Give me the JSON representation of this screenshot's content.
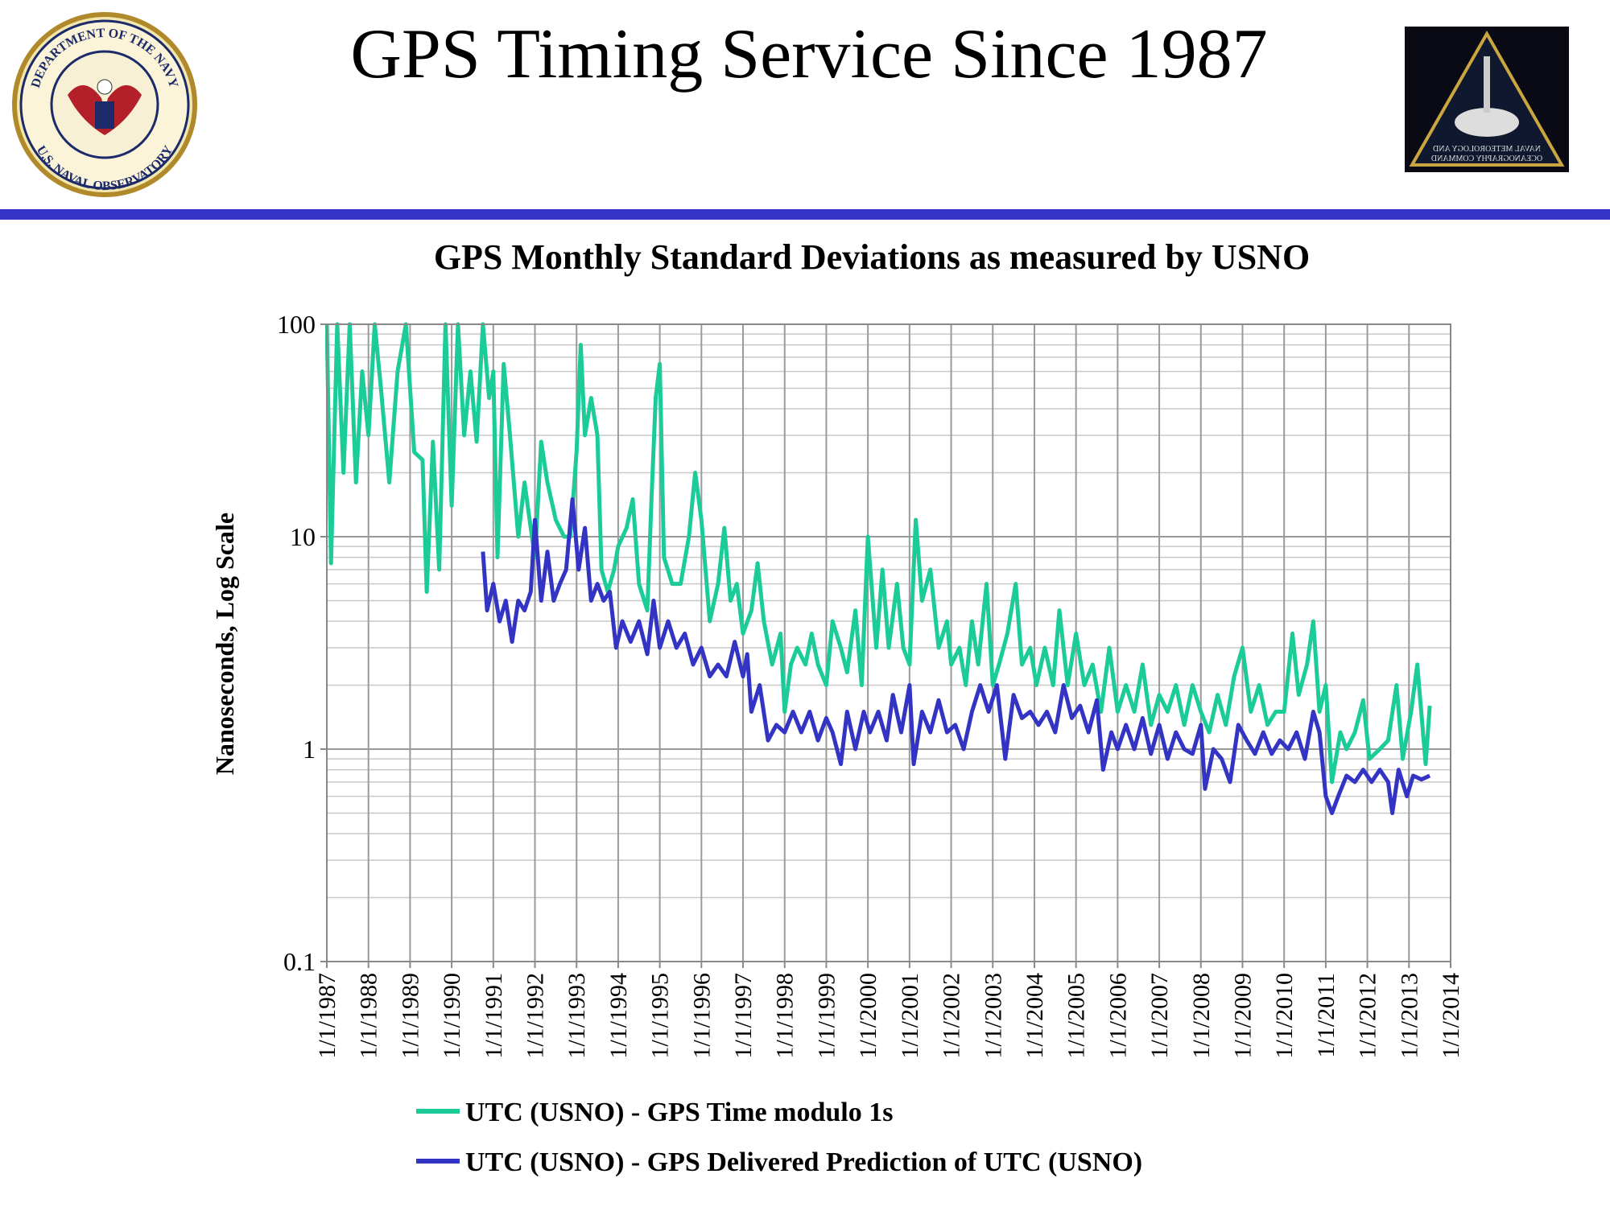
{
  "header": {
    "title": "GPS Timing Service Since 1987",
    "left_logo": {
      "top_text": "DEPARTMENT OF THE NAVY",
      "bottom_text": "U.S. NAVAL OBSERVATORY"
    },
    "right_logo": {
      "line1": "NAVAL METEOROLOGY AND",
      "line2": "OCEANOGRAPHY COMMAND"
    }
  },
  "chart_data": {
    "type": "line",
    "title": "GPS Monthly Standard Deviations as measured by USNO",
    "y_label": "Nanoseconds, Log Scale",
    "log_y": true,
    "grid": true,
    "legend": "bottom",
    "ylim": [
      0.1,
      100
    ],
    "yticks": [
      0.1,
      1,
      10,
      100
    ],
    "yminorticks": [
      0.2,
      0.3,
      0.4,
      0.5,
      0.6,
      0.7,
      0.8,
      0.9,
      2,
      3,
      4,
      5,
      6,
      7,
      8,
      9,
      20,
      30,
      40,
      50,
      60,
      70,
      80,
      90
    ],
    "xlim": [
      1987,
      2014
    ],
    "xticks": [
      {
        "value": 1987,
        "label": "1/1/1987"
      },
      {
        "value": 1988,
        "label": "1/1/1988"
      },
      {
        "value": 1989,
        "label": "1/1/1989"
      },
      {
        "value": 1990,
        "label": "1/1/1990"
      },
      {
        "value": 1991,
        "label": "1/1/1991"
      },
      {
        "value": 1992,
        "label": "1/1/1992"
      },
      {
        "value": 1993,
        "label": "1/1/1993"
      },
      {
        "value": 1994,
        "label": "1/1/1994"
      },
      {
        "value": 1995,
        "label": "1/1/1995"
      },
      {
        "value": 1996,
        "label": "1/1/1996"
      },
      {
        "value": 1997,
        "label": "1/1/1997"
      },
      {
        "value": 1998,
        "label": "1/1/1998"
      },
      {
        "value": 1999,
        "label": "1/1/1999"
      },
      {
        "value": 2000,
        "label": "1/1/2000"
      },
      {
        "value": 2001,
        "label": "1/1/2001"
      },
      {
        "value": 2002,
        "label": "1/1/2002"
      },
      {
        "value": 2003,
        "label": "1/1/2003"
      },
      {
        "value": 2004,
        "label": "1/1/2004"
      },
      {
        "value": 2005,
        "label": "1/1/2005"
      },
      {
        "value": 2006,
        "label": "1/1/2006"
      },
      {
        "value": 2007,
        "label": "1/1/2007"
      },
      {
        "value": 2008,
        "label": "1/1/2008"
      },
      {
        "value": 2009,
        "label": "1/1/2009"
      },
      {
        "value": 2010,
        "label": "1/1/2010"
      },
      {
        "value": 2011,
        "label": "1/1/2011"
      },
      {
        "value": 2012,
        "label": "1/1/2012"
      },
      {
        "value": 2013,
        "label": "1/1/2013"
      },
      {
        "value": 2014,
        "label": "1/1/2014"
      }
    ],
    "series": [
      {
        "name": "UTC (USNO) - GPS Time modulo 1s",
        "color": "#1ccc98",
        "x": [
          1987.0,
          1987.1,
          1987.25,
          1987.4,
          1987.55,
          1987.7,
          1987.85,
          1988.0,
          1988.15,
          1988.3,
          1988.5,
          1988.7,
          1988.9,
          1989.1,
          1989.3,
          1989.4,
          1989.55,
          1989.7,
          1989.85,
          1990.0,
          1990.15,
          1990.3,
          1990.45,
          1990.6,
          1990.75,
          1990.9,
          1991.0,
          1991.1,
          1991.25,
          1991.4,
          1991.6,
          1991.75,
          1991.9,
          1992.0,
          1992.15,
          1992.3,
          1992.5,
          1992.7,
          1992.85,
          1993.0,
          1993.1,
          1993.2,
          1993.35,
          1993.5,
          1993.6,
          1993.75,
          1993.9,
          1994.0,
          1994.2,
          1994.35,
          1994.5,
          1994.7,
          1994.8,
          1994.9,
          1995.0,
          1995.1,
          1995.3,
          1995.5,
          1995.7,
          1995.85,
          1996.0,
          1996.2,
          1996.4,
          1996.55,
          1996.7,
          1996.85,
          1997.0,
          1997.2,
          1997.35,
          1997.5,
          1997.7,
          1997.9,
          1998.0,
          1998.15,
          1998.3,
          1998.5,
          1998.65,
          1998.8,
          1999.0,
          1999.15,
          1999.35,
          1999.5,
          1999.7,
          1999.85,
          2000.0,
          2000.2,
          2000.35,
          2000.5,
          2000.7,
          2000.85,
          2001.0,
          2001.15,
          2001.3,
          2001.5,
          2001.7,
          2001.9,
          2002.0,
          2002.2,
          2002.35,
          2002.5,
          2002.65,
          2002.85,
          2003.0,
          2003.15,
          2003.35,
          2003.55,
          2003.7,
          2003.9,
          2004.05,
          2004.25,
          2004.45,
          2004.6,
          2004.8,
          2005.0,
          2005.2,
          2005.4,
          2005.6,
          2005.8,
          2006.0,
          2006.2,
          2006.4,
          2006.6,
          2006.8,
          2007.0,
          2007.2,
          2007.4,
          2007.6,
          2007.8,
          2008.0,
          2008.2,
          2008.4,
          2008.6,
          2008.8,
          2009.0,
          2009.2,
          2009.4,
          2009.6,
          2009.8,
          2010.0,
          2010.2,
          2010.35,
          2010.55,
          2010.7,
          2010.85,
          2011.0,
          2011.15,
          2011.35,
          2011.5,
          2011.7,
          2011.9,
          2012.05,
          2012.3,
          2012.5,
          2012.7,
          2012.85,
          2013.05,
          2013.2,
          2013.4,
          2013.5
        ],
        "values": [
          100,
          7.5,
          100,
          20,
          100,
          18,
          60,
          30,
          100,
          50,
          18,
          60,
          100,
          25,
          23,
          5.5,
          28,
          7,
          100,
          14,
          100,
          30,
          60,
          28,
          100,
          45,
          60,
          8,
          65,
          30,
          10,
          18,
          11,
          8,
          28,
          18,
          12,
          10,
          10,
          25,
          80,
          30,
          45,
          30,
          7,
          5.5,
          7,
          9,
          11,
          15,
          6,
          4.5,
          15,
          45,
          65,
          8,
          6,
          6,
          10,
          20,
          12,
          4,
          6,
          11,
          5,
          6,
          3.5,
          4.5,
          7.5,
          4,
          2.5,
          3.5,
          1.5,
          2.5,
          3,
          2.5,
          3.5,
          2.5,
          2,
          4,
          3,
          2.3,
          4.5,
          2,
          10,
          3,
          7,
          3,
          6,
          3,
          2.5,
          12,
          5,
          7,
          3,
          4,
          2.5,
          3,
          2,
          4,
          2.5,
          6,
          2,
          2.5,
          3.5,
          6,
          2.5,
          3,
          2,
          3,
          2,
          4.5,
          2,
          3.5,
          2,
          2.5,
          1.5,
          3,
          1.5,
          2,
          1.5,
          2.5,
          1.3,
          1.8,
          1.5,
          2,
          1.3,
          2,
          1.5,
          1.2,
          1.8,
          1.3,
          2.2,
          3,
          1.5,
          2,
          1.3,
          1.5,
          1.5,
          3.5,
          1.8,
          2.5,
          4,
          1.5,
          2,
          0.7,
          1.2,
          1,
          1.2,
          1.7,
          0.9,
          1,
          1.1,
          2,
          0.9,
          1.5,
          2.5,
          0.85,
          1.6
        ]
      },
      {
        "name": "UTC (USNO) - GPS Delivered Prediction of UTC (USNO)",
        "color": "#3333c4",
        "x": [
          1990.75,
          1990.85,
          1991.0,
          1991.15,
          1991.3,
          1991.45,
          1991.6,
          1991.75,
          1991.9,
          1992.0,
          1992.15,
          1992.3,
          1992.45,
          1992.6,
          1992.75,
          1992.9,
          1993.05,
          1993.2,
          1993.35,
          1993.5,
          1993.65,
          1993.8,
          1993.95,
          1994.1,
          1994.3,
          1994.5,
          1994.7,
          1994.85,
          1995.0,
          1995.2,
          1995.4,
          1995.6,
          1995.8,
          1996.0,
          1996.2,
          1996.4,
          1996.6,
          1996.8,
          1997.0,
          1997.1,
          1997.2,
          1997.4,
          1997.6,
          1997.8,
          1998.0,
          1998.2,
          1998.4,
          1998.6,
          1998.8,
          1999.0,
          1999.15,
          1999.35,
          1999.5,
          1999.7,
          1999.9,
          2000.05,
          2000.25,
          2000.45,
          2000.6,
          2000.8,
          2001.0,
          2001.1,
          2001.3,
          2001.5,
          2001.7,
          2001.9,
          2002.1,
          2002.3,
          2002.5,
          2002.7,
          2002.9,
          2003.1,
          2003.3,
          2003.5,
          2003.7,
          2003.9,
          2004.1,
          2004.3,
          2004.5,
          2004.7,
          2004.9,
          2005.1,
          2005.3,
          2005.5,
          2005.65,
          2005.85,
          2006.0,
          2006.2,
          2006.4,
          2006.6,
          2006.8,
          2007.0,
          2007.2,
          2007.4,
          2007.6,
          2007.8,
          2008.0,
          2008.1,
          2008.3,
          2008.5,
          2008.7,
          2008.9,
          2009.1,
          2009.3,
          2009.5,
          2009.7,
          2009.9,
          2010.1,
          2010.3,
          2010.5,
          2010.7,
          2010.85,
          2011.0,
          2011.15,
          2011.3,
          2011.5,
          2011.7,
          2011.9,
          2012.1,
          2012.3,
          2012.5,
          2012.6,
          2012.75,
          2012.95,
          2013.1,
          2013.3,
          2013.5
        ],
        "values": [
          8.5,
          4.5,
          6,
          4,
          5,
          3.2,
          5,
          4.5,
          5.5,
          12,
          5,
          8.5,
          5,
          6,
          7,
          15,
          7,
          11,
          5,
          6,
          5,
          5.5,
          3,
          4,
          3.2,
          4,
          2.8,
          5,
          3,
          4,
          3,
          3.5,
          2.5,
          3,
          2.2,
          2.5,
          2.2,
          3.2,
          2.2,
          2.8,
          1.5,
          2,
          1.1,
          1.3,
          1.2,
          1.5,
          1.2,
          1.5,
          1.1,
          1.4,
          1.2,
          0.85,
          1.5,
          1,
          1.5,
          1.2,
          1.5,
          1.1,
          1.8,
          1.2,
          2,
          0.85,
          1.5,
          1.2,
          1.7,
          1.2,
          1.3,
          1,
          1.5,
          2,
          1.5,
          2,
          0.9,
          1.8,
          1.4,
          1.5,
          1.3,
          1.5,
          1.2,
          2,
          1.4,
          1.6,
          1.2,
          1.7,
          0.8,
          1.2,
          1,
          1.3,
          1,
          1.4,
          0.95,
          1.3,
          0.9,
          1.2,
          1,
          0.95,
          1.3,
          0.65,
          1,
          0.9,
          0.7,
          1.3,
          1.1,
          0.95,
          1.2,
          0.95,
          1.1,
          1,
          1.2,
          0.9,
          1.5,
          1.2,
          0.6,
          0.5,
          0.6,
          0.75,
          0.7,
          0.8,
          0.7,
          0.8,
          0.7,
          0.5,
          0.8,
          0.6,
          0.75,
          0.72,
          0.75
        ]
      }
    ]
  }
}
